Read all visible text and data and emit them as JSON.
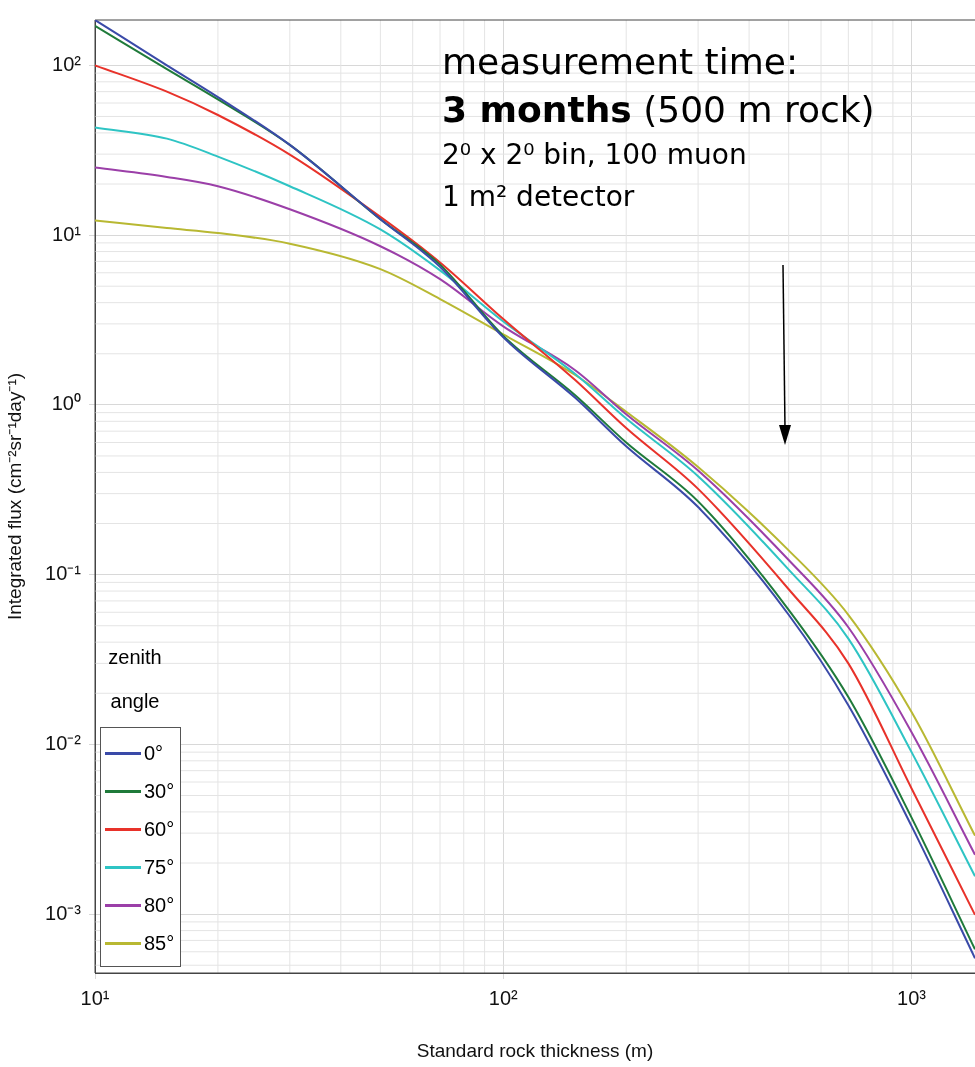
{
  "chart_data": {
    "type": "line",
    "xlabel": "Standard rock thickness (m)",
    "ylabel": "Integrated flux (cm⁻²sr⁻¹day⁻¹)",
    "legend_title": "zenith angle",
    "log": "xy",
    "grid": true,
    "legend": "bottom left",
    "marker": "none",
    "line_style": "solid",
    "xlim": [
      10,
      1430
    ],
    "ylim": [
      0.00045,
      185
    ],
    "xticks": [
      {
        "value": 10,
        "label": "10¹"
      },
      {
        "value": 100,
        "label": "10²"
      },
      {
        "value": 1000,
        "label": "10³"
      }
    ],
    "yticks": [
      {
        "value": 0.001,
        "label": "10⁻³"
      },
      {
        "value": 0.01,
        "label": "10⁻²"
      },
      {
        "value": 0.1,
        "label": "10⁻¹"
      },
      {
        "value": 1,
        "label": "10⁰"
      },
      {
        "value": 10,
        "label": "10¹"
      },
      {
        "value": 100,
        "label": "10²"
      }
    ],
    "x": [
      10,
      15,
      20,
      30,
      50,
      70,
      100,
      150,
      200,
      300,
      500,
      700,
      1000,
      1430
    ],
    "series": [
      {
        "name": "0°",
        "color": "#3a4aa8",
        "values": [
          185,
          100,
          65,
          34,
          12.4,
          6.5,
          2.5,
          1.1,
          0.57,
          0.25,
          0.058,
          0.017,
          0.0033,
          0.00055
        ]
      },
      {
        "name": "30°",
        "color": "#1f7a3a",
        "values": [
          171,
          95,
          63,
          34,
          12.4,
          6.7,
          2.55,
          1.14,
          0.6,
          0.27,
          0.062,
          0.019,
          0.0037,
          0.00062
        ]
      },
      {
        "name": "60°",
        "color": "#e8322a",
        "values": [
          100,
          70,
          51,
          29.8,
          12.8,
          6.9,
          3.2,
          1.4,
          0.73,
          0.32,
          0.082,
          0.03,
          0.0055,
          0.00099
        ]
      },
      {
        "name": "75°",
        "color": "#2ec4c4",
        "values": [
          43,
          37,
          29,
          19.4,
          10.8,
          6.2,
          3.1,
          1.52,
          0.83,
          0.38,
          0.107,
          0.042,
          0.009,
          0.00167
        ]
      },
      {
        "name": "80°",
        "color": "#9b3fa8",
        "values": [
          25,
          22,
          19.4,
          14.2,
          8.6,
          5.5,
          2.9,
          1.6,
          0.88,
          0.41,
          0.122,
          0.049,
          0.0118,
          0.00224
        ]
      },
      {
        "name": "85°",
        "color": "#b8b832",
        "values": [
          12.2,
          11,
          10.3,
          8.9,
          6.3,
          4.2,
          2.6,
          1.5,
          0.91,
          0.43,
          0.139,
          0.058,
          0.0155,
          0.0029
        ]
      }
    ],
    "annotations": [
      "measurement time:",
      "3 months (500 m rock)",
      "2⁰ x 2⁰  bin, 100 muon",
      "1 m² detector"
    ]
  }
}
